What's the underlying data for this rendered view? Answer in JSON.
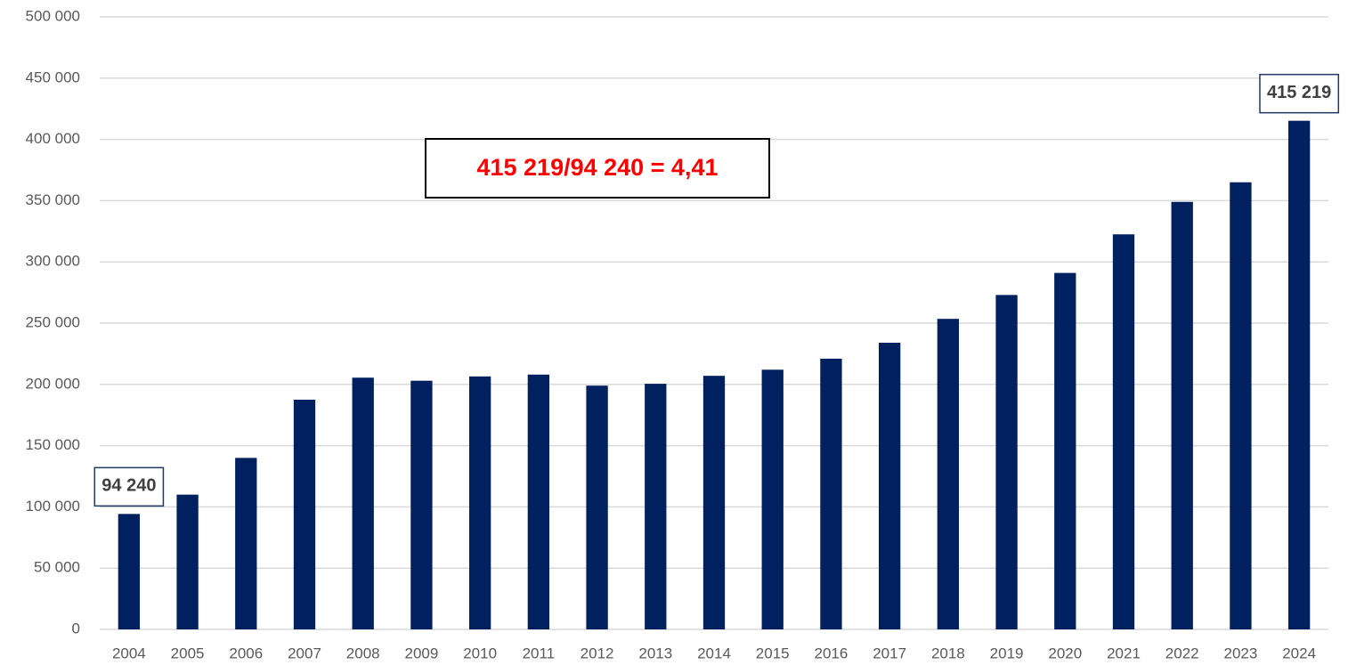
{
  "chart_data": {
    "type": "bar",
    "categories": [
      "2004",
      "2005",
      "2006",
      "2007",
      "2008",
      "2009",
      "2010",
      "2011",
      "2012",
      "2013",
      "2014",
      "2015",
      "2016",
      "2017",
      "2018",
      "2019",
      "2020",
      "2021",
      "2022",
      "2023",
      "2024"
    ],
    "values": [
      94240,
      110000,
      140000,
      187500,
      205500,
      203000,
      206500,
      208000,
      199000,
      200500,
      207000,
      212000,
      221000,
      234000,
      253500,
      273000,
      291000,
      322500,
      349000,
      365000,
      415219
    ],
    "value_labels": [
      "94 240",
      null,
      null,
      null,
      null,
      null,
      null,
      null,
      null,
      null,
      null,
      null,
      null,
      null,
      null,
      null,
      null,
      null,
      null,
      null,
      "415 219"
    ],
    "color": "#002060",
    "ylim": [
      0,
      500000
    ],
    "yticks": [
      0,
      {
        "value": 50000,
        "label": "50 000"
      },
      {
        "value": 100000,
        "label": "100 000"
      },
      {
        "value": 150000,
        "label": "150 000"
      },
      {
        "value": 200000,
        "label": "200 000"
      },
      {
        "value": 250000,
        "label": "250 000"
      },
      {
        "value": 300000,
        "label": "300 000"
      },
      {
        "value": 350000,
        "label": "350 000"
      },
      {
        "value": 400000,
        "label": "400 000"
      },
      {
        "value": 450000,
        "label": "450 000"
      },
      {
        "value": 500000,
        "label": "500 000"
      }
    ],
    "grid": true,
    "annotation": "415 219/94 240 = 4,41"
  }
}
